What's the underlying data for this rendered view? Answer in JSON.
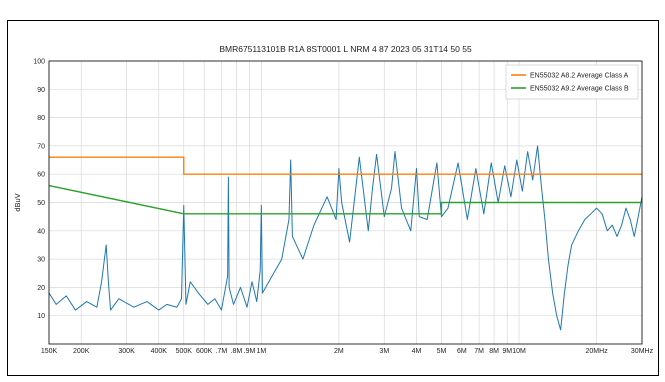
{
  "chart_data": {
    "type": "line",
    "title": "BMR675113101B R1A 8ST0001 L NRM 4 87 2023 05 31T14 50 55",
    "xlabel": "",
    "ylabel": "dBuV",
    "x_scale": "log",
    "xlim": [
      150000,
      30000000
    ],
    "ylim": [
      0,
      100
    ],
    "yticks": [
      10,
      20,
      30,
      40,
      50,
      60,
      70,
      80,
      90,
      100
    ],
    "xticks": [
      {
        "value": 150000,
        "label": "150K"
      },
      {
        "value": 200000,
        "label": "200K"
      },
      {
        "value": 300000,
        "label": "300K"
      },
      {
        "value": 400000,
        "label": "400K"
      },
      {
        "value": 500000,
        "label": "500K"
      },
      {
        "value": 600000,
        "label": "600K"
      },
      {
        "value": 700000,
        "label": ".7M"
      },
      {
        "value": 800000,
        "label": ".8M"
      },
      {
        "value": 900000,
        "label": ".9M"
      },
      {
        "value": 1000000,
        "label": "1M"
      },
      {
        "value": 2000000,
        "label": "2M"
      },
      {
        "value": 3000000,
        "label": "3M"
      },
      {
        "value": 4000000,
        "label": "4M"
      },
      {
        "value": 5000000,
        "label": "5M"
      },
      {
        "value": 6000000,
        "label": "6M"
      },
      {
        "value": 7000000,
        "label": "7M"
      },
      {
        "value": 8000000,
        "label": "8M"
      },
      {
        "value": 9000000,
        "label": "9M"
      },
      {
        "value": 10000000,
        "label": "10M"
      },
      {
        "value": 20000000,
        "label": "20MHz"
      },
      {
        "value": 30000000,
        "label": "30MHz"
      }
    ],
    "grid": true,
    "legend_position": "top-right",
    "series": [
      {
        "name": "EN55032 A8.2 Average Class A",
        "color": "#ff7f0e",
        "x": [
          150000,
          500000,
          500000,
          30000000
        ],
        "y": [
          66,
          66,
          60,
          60
        ]
      },
      {
        "name": "EN55032 A9.2 Average Class B",
        "color": "#2ca02c",
        "x": [
          150000,
          500000,
          5000000,
          5000000,
          30000000
        ],
        "y": [
          56,
          46,
          46,
          50,
          50
        ]
      },
      {
        "color": "#1f77b4",
        "x": [
          150000,
          160000,
          175000,
          190000,
          210000,
          230000,
          240000,
          250000,
          255000,
          260000,
          280000,
          320000,
          360000,
          400000,
          430000,
          470000,
          490000,
          500000,
          510000,
          530000,
          570000,
          620000,
          660000,
          700000,
          740000,
          745000,
          750000,
          780000,
          830000,
          880000,
          920000,
          960000,
          990000,
          1000000,
          1010000,
          1100000,
          1200000,
          1280000,
          1300000,
          1320000,
          1450000,
          1600000,
          1800000,
          1950000,
          2000000,
          2050000,
          2200000,
          2400000,
          2600000,
          2700000,
          2800000,
          3000000,
          3200000,
          3300000,
          3500000,
          3800000,
          4000000,
          4100000,
          4400000,
          4800000,
          5000000,
          5300000,
          5800000,
          6300000,
          6800000,
          7300000,
          7800000,
          8300000,
          8800000,
          9300000,
          9800000,
          10300000,
          10800000,
          11300000,
          11800000,
          12200000,
          12600000,
          13000000,
          13500000,
          14000000,
          14500000,
          15000000,
          15500000,
          16000000,
          17000000,
          18000000,
          19000000,
          20000000,
          21000000,
          22000000,
          23000000,
          24000000,
          25000000,
          26000000,
          27000000,
          28000000,
          29000000,
          30000000
        ],
        "y": [
          18,
          14,
          17,
          12,
          15,
          13,
          22,
          35,
          22,
          12,
          16,
          13,
          15,
          12,
          14,
          13,
          16,
          49,
          14,
          22,
          18,
          14,
          16,
          12,
          24,
          59,
          20,
          14,
          20,
          13,
          22,
          15,
          26,
          49,
          18,
          24,
          30,
          44,
          65,
          38,
          30,
          42,
          52,
          44,
          62,
          50,
          36,
          66,
          40,
          55,
          67,
          45,
          55,
          68,
          48,
          40,
          62,
          45,
          44,
          64,
          45,
          48,
          64,
          44,
          62,
          46,
          64,
          50,
          63,
          52,
          65,
          54,
          68,
          58,
          70,
          56,
          44,
          30,
          18,
          10,
          5,
          18,
          28,
          35,
          40,
          44,
          46,
          48,
          46,
          40,
          42,
          38,
          42,
          48,
          44,
          38,
          45,
          52
        ]
      }
    ]
  }
}
